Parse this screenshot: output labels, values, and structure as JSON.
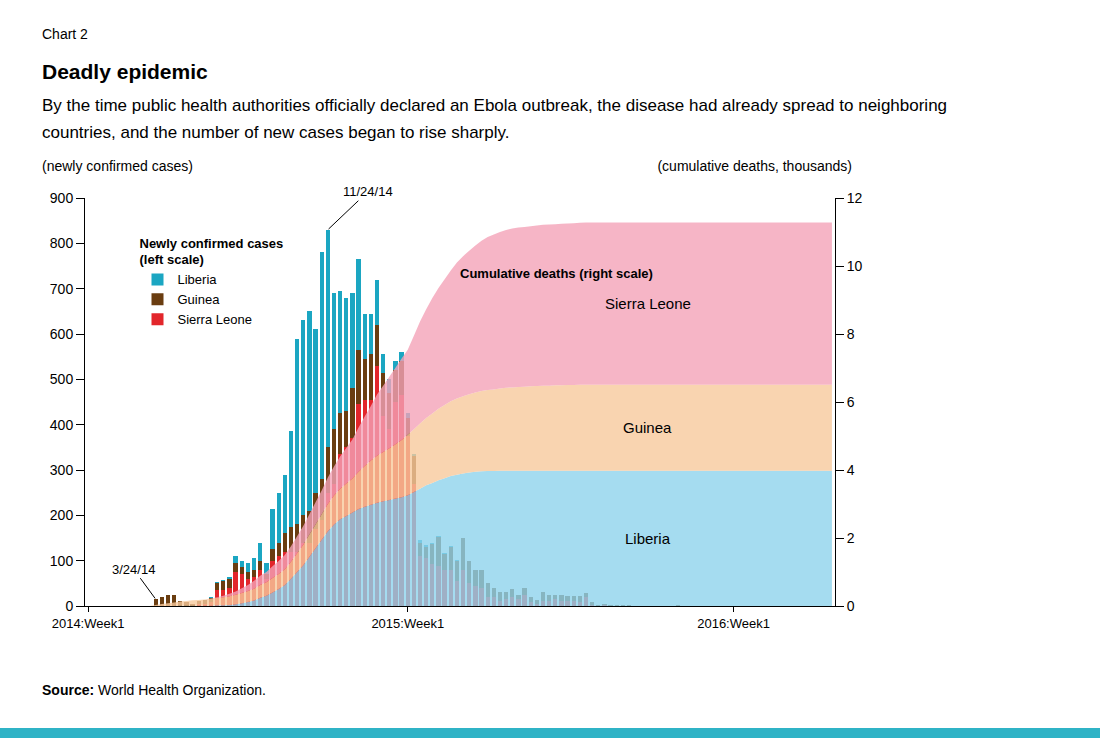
{
  "chart_data": {
    "type": "bar",
    "label": "Chart 2",
    "title": "Deadly epidemic",
    "subtitle": "By the time public health authorities officially declared an Ebola outbreak, the disease had already spread to neighboring countries, and the number of new cases began to rise sharply.",
    "y_label": "(newly confirmed cases)",
    "y2_label": "(cumulative deaths, thousands)",
    "source_label": "Source:",
    "source": "World Health Organization.",
    "legend_title": "Newly confirmed cases (left scale)",
    "area_title": "Cumulative deaths (right scale)",
    "stacked": true,
    "grid": false,
    "legend": "top-left",
    "ylim": [
      0,
      900
    ],
    "yticks": [
      0,
      100,
      200,
      300,
      400,
      500,
      600,
      700,
      800,
      900
    ],
    "y2lim": [
      0,
      12
    ],
    "y2ticks": [
      0,
      2,
      4,
      6,
      8,
      10,
      12
    ],
    "categories": [
      "2014:Week1",
      null,
      null,
      null,
      null,
      null,
      null,
      null,
      null,
      null,
      null,
      null,
      null,
      null,
      null,
      null,
      null,
      null,
      null,
      null,
      null,
      null,
      null,
      null,
      null,
      null,
      null,
      null,
      null,
      null,
      null,
      null,
      null,
      null,
      null,
      null,
      null,
      null,
      null,
      null,
      null,
      null,
      null,
      null,
      null,
      null,
      null,
      null,
      null,
      null,
      null,
      null,
      "2015:Week1",
      null,
      null,
      null,
      null,
      null,
      null,
      null,
      null,
      null,
      null,
      null,
      null,
      null,
      null,
      null,
      null,
      null,
      null,
      null,
      null,
      null,
      null,
      null,
      null,
      null,
      null,
      null,
      null,
      null,
      null,
      null,
      null,
      null,
      null,
      null,
      null,
      null,
      null,
      null,
      null,
      null,
      null,
      null,
      null,
      null,
      null,
      null,
      null,
      null,
      null,
      null,
      null,
      "2016:Week1",
      null,
      null,
      null,
      null,
      null,
      null,
      null,
      null,
      null,
      null,
      null,
      null,
      null,
      null,
      null,
      null
    ],
    "series": [
      {
        "name": "Sierra Leone",
        "color": "#e2262b",
        "type": "bar",
        "values": [
          0,
          0,
          0,
          0,
          0,
          0,
          0,
          0,
          0,
          0,
          0,
          0,
          0,
          0,
          0,
          0,
          0,
          0,
          4,
          5,
          8,
          35,
          35,
          40,
          75,
          70,
          60,
          65,
          80,
          60,
          100,
          110,
          120,
          120,
          120,
          140,
          140,
          170,
          190,
          250,
          270,
          335,
          350,
          370,
          445,
          455,
          455,
          530,
          420,
          390,
          450,
          465,
          375,
          270,
          110,
          105,
          92,
          88,
          80,
          80,
          55,
          79,
          50,
          45,
          40,
          20,
          20,
          10,
          15,
          20,
          15,
          25,
          8,
          5,
          10,
          10,
          15,
          12,
          12,
          10,
          8,
          20,
          3,
          0,
          2,
          1,
          1,
          0,
          0,
          0,
          0,
          0,
          0,
          0,
          0,
          0,
          0,
          0,
          0,
          0,
          0,
          0,
          0,
          0,
          0,
          0,
          0,
          0,
          0,
          0,
          0,
          0,
          0,
          0,
          0,
          0,
          0,
          0,
          0,
          0,
          0,
          0
        ]
      },
      {
        "name": "Guinea",
        "color": "#6a3d10",
        "type": "bar",
        "values": [
          0,
          0,
          0,
          0,
          0,
          0,
          0,
          0,
          0,
          0,
          0,
          15,
          20,
          25,
          25,
          12,
          8,
          5,
          6,
          8,
          10,
          15,
          20,
          20,
          20,
          15,
          15,
          15,
          20,
          10,
          25,
          30,
          40,
          55,
          60,
          60,
          70,
          80,
          90,
          100,
          120,
          90,
          80,
          110,
          120,
          90,
          100,
          90,
          95,
          80,
          70,
          75,
          40,
          60,
          30,
          25,
          45,
          65,
          35,
          50,
          45,
          70,
          50,
          35,
          40,
          30,
          20,
          20,
          15,
          18,
          10,
          15,
          12,
          8,
          20,
          15,
          10,
          12,
          10,
          12,
          15,
          8,
          5,
          2,
          3,
          2,
          1,
          3,
          2,
          1,
          1,
          0,
          0,
          1,
          0,
          0,
          2,
          0,
          1,
          0,
          0,
          1,
          0,
          0,
          0,
          0,
          0,
          0,
          0,
          0,
          0,
          0,
          0,
          0,
          0,
          0,
          0,
          0,
          0,
          0,
          0,
          0
        ]
      },
      {
        "name": "Liberia",
        "color": "#1ba6c2",
        "type": "bar",
        "values": [
          0,
          0,
          0,
          0,
          0,
          0,
          0,
          0,
          0,
          0,
          0,
          0,
          0,
          0,
          0,
          0,
          0,
          0,
          0,
          0,
          2,
          3,
          3,
          5,
          15,
          15,
          20,
          25,
          40,
          25,
          90,
          110,
          130,
          210,
          410,
          430,
          440,
          360,
          500,
          480,
          300,
          270,
          250,
          210,
          200,
          100,
          90,
          100,
          40,
          30,
          20,
          20,
          10,
          5,
          5,
          5,
          3,
          2,
          3,
          2,
          2,
          1,
          0,
          0,
          0,
          0,
          0,
          0,
          0,
          0,
          0,
          0,
          0,
          0,
          0,
          0,
          0,
          0,
          0,
          0,
          0,
          0,
          0,
          0,
          0,
          0,
          0,
          0,
          0,
          0,
          0,
          0,
          0,
          0,
          0,
          0,
          0,
          0,
          0,
          0,
          0,
          0,
          0,
          0,
          0,
          0,
          0,
          0,
          0,
          0,
          0,
          0,
          0,
          0,
          0,
          0,
          0,
          0,
          0,
          0,
          0,
          0
        ]
      },
      {
        "name": "Liberia",
        "color": "#8ed3ec",
        "type": "area",
        "axis": "y2",
        "values": [
          0,
          0,
          0,
          0,
          0,
          0,
          0,
          0,
          0,
          0,
          0,
          0,
          0,
          0,
          0,
          0.01,
          0.01,
          0.01,
          0.01,
          0.01,
          0.01,
          0.02,
          0.02,
          0.03,
          0.05,
          0.08,
          0.12,
          0.16,
          0.24,
          0.3,
          0.4,
          0.5,
          0.62,
          0.8,
          1.0,
          1.2,
          1.45,
          1.7,
          1.95,
          2.2,
          2.4,
          2.55,
          2.65,
          2.75,
          2.85,
          2.92,
          2.98,
          3.04,
          3.08,
          3.12,
          3.16,
          3.2,
          3.26,
          3.35,
          3.45,
          3.55,
          3.62,
          3.7,
          3.76,
          3.82,
          3.86,
          3.9,
          3.93,
          3.95,
          3.96,
          3.97,
          3.97,
          3.98,
          3.98,
          3.98,
          3.98,
          3.98,
          3.98,
          3.98,
          3.98,
          3.98,
          3.98,
          3.98,
          3.98,
          3.98,
          3.98,
          3.98,
          3.98,
          3.98,
          3.98,
          3.98,
          3.98,
          3.98,
          3.98,
          3.98,
          3.98,
          3.98,
          3.98,
          3.98,
          3.98,
          3.98,
          3.98,
          3.98,
          3.98,
          3.98,
          3.98,
          3.98,
          3.98,
          3.98,
          3.98,
          3.98,
          3.98,
          3.98,
          3.98,
          3.98,
          3.98,
          3.98,
          3.98,
          3.98,
          3.98,
          3.98,
          3.98,
          3.98,
          3.98,
          3.98,
          3.98,
          3.98
        ]
      },
      {
        "name": "Guinea",
        "color": "#f7c99c",
        "type": "area",
        "axis": "y2",
        "values": [
          0,
          0,
          0,
          0,
          0,
          0,
          0,
          0,
          0,
          0,
          0,
          0.03,
          0.06,
          0.08,
          0.1,
          0.12,
          0.14,
          0.16,
          0.17,
          0.18,
          0.2,
          0.22,
          0.24,
          0.26,
          0.28,
          0.3,
          0.32,
          0.35,
          0.38,
          0.4,
          0.42,
          0.44,
          0.46,
          0.5,
          0.55,
          0.6,
          0.65,
          0.7,
          0.75,
          0.8,
          0.85,
          0.9,
          0.95,
          1.0,
          1.1,
          1.2,
          1.3,
          1.38,
          1.45,
          1.52,
          1.6,
          1.68,
          1.78,
          1.85,
          1.92,
          1.98,
          2.04,
          2.1,
          2.15,
          2.2,
          2.24,
          2.27,
          2.3,
          2.33,
          2.36,
          2.38,
          2.4,
          2.42,
          2.44,
          2.45,
          2.46,
          2.47,
          2.48,
          2.49,
          2.5,
          2.5,
          2.51,
          2.51,
          2.52,
          2.52,
          2.53,
          2.53,
          2.53,
          2.53,
          2.53,
          2.53,
          2.53,
          2.53,
          2.53,
          2.53,
          2.53,
          2.53,
          2.53,
          2.53,
          2.53,
          2.53,
          2.53,
          2.53,
          2.53,
          2.53,
          2.53,
          2.53,
          2.53,
          2.53,
          2.53,
          2.53,
          2.53,
          2.53,
          2.53,
          2.53,
          2.53,
          2.53,
          2.53,
          2.53,
          2.53,
          2.53,
          2.53,
          2.53,
          2.53,
          2.53,
          2.53,
          2.53
        ]
      },
      {
        "name": "Sierra Leone",
        "color": "#f4a3b8",
        "type": "area",
        "axis": "y2",
        "values": [
          0,
          0,
          0,
          0,
          0,
          0,
          0,
          0,
          0,
          0,
          0,
          0,
          0,
          0,
          0,
          0,
          0,
          0,
          0,
          0,
          0.01,
          0.02,
          0.04,
          0.07,
          0.1,
          0.14,
          0.18,
          0.23,
          0.27,
          0.3,
          0.35,
          0.38,
          0.42,
          0.46,
          0.5,
          0.55,
          0.6,
          0.65,
          0.7,
          0.78,
          0.85,
          0.95,
          1.05,
          1.15,
          1.3,
          1.45,
          1.6,
          1.8,
          1.95,
          2.1,
          2.25,
          2.4,
          2.5,
          2.75,
          3.0,
          3.2,
          3.4,
          3.55,
          3.7,
          3.85,
          4.0,
          4.12,
          4.22,
          4.32,
          4.42,
          4.5,
          4.56,
          4.6,
          4.64,
          4.67,
          4.69,
          4.7,
          4.71,
          4.72,
          4.73,
          4.74,
          4.74,
          4.75,
          4.75,
          4.76,
          4.76,
          4.77,
          4.77,
          4.77,
          4.77,
          4.77,
          4.77,
          4.77,
          4.77,
          4.77,
          4.77,
          4.77,
          4.77,
          4.77,
          4.77,
          4.77,
          4.77,
          4.77,
          4.77,
          4.77,
          4.77,
          4.77,
          4.77,
          4.77,
          4.77,
          4.77,
          4.77,
          4.77,
          4.77,
          4.77,
          4.77,
          4.77,
          4.77,
          4.77,
          4.77,
          4.77,
          4.77,
          4.77,
          4.77,
          4.77,
          4.77,
          4.77
        ]
      }
    ],
    "annotations": [
      {
        "text": "3/24/14",
        "x": 11,
        "y": 15
      },
      {
        "text": "11/24/14",
        "x": 39,
        "y": 830
      }
    ]
  }
}
